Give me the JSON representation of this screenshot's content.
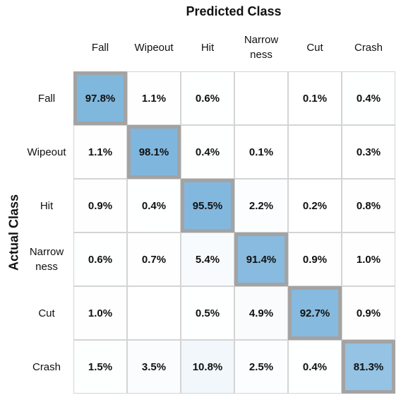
{
  "chart_data": {
    "type": "heatmap",
    "title": "Predicted Class",
    "ylabel": "Actual Class",
    "columns": [
      "Fall",
      "Wipeout",
      "Hit",
      "Narrow\nness",
      "Cut",
      "Crash"
    ],
    "rows": [
      "Fall",
      "Wipeout",
      "Hit",
      "Narrow\nness",
      "Cut",
      "Crash"
    ],
    "values": [
      [
        97.8,
        1.1,
        0.6,
        null,
        0.1,
        0.4
      ],
      [
        1.1,
        98.1,
        0.4,
        0.1,
        null,
        0.3
      ],
      [
        0.9,
        0.4,
        95.5,
        2.2,
        0.2,
        0.8
      ],
      [
        0.6,
        0.7,
        5.4,
        91.4,
        0.9,
        1.0
      ],
      [
        1.0,
        null,
        0.5,
        4.9,
        92.7,
        0.9
      ],
      [
        1.5,
        3.5,
        10.8,
        2.5,
        0.4,
        81.3
      ]
    ],
    "value_suffix": "%",
    "highlight": "diagonal",
    "colors": {
      "high": "#7db5dc",
      "low": "#ffffff",
      "diagonal_border": "#a3a3a3",
      "grid": "#d4d4d4"
    }
  }
}
